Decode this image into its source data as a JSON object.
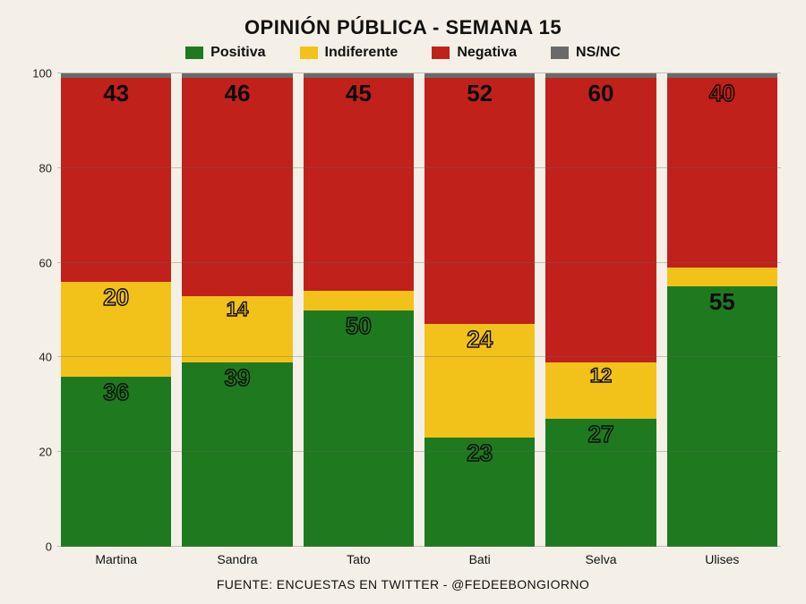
{
  "title": "OPINIÓN PÚBLICA - SEMANA 15",
  "footer": "FUENTE: ENCUESTAS EN TWITTER - @FEDEEBONGIORNO",
  "background_color": "#f4f0e7",
  "grid_color": "#8a8a82",
  "text_color": "#111111",
  "title_fontsize": 22,
  "axis_fontsize": 13,
  "legend": {
    "items": [
      {
        "label": "Positiva",
        "color": "#1f7a1f"
      },
      {
        "label": "Indiferente",
        "color": "#f2c21a"
      },
      {
        "label": "Negativa",
        "color": "#c0211b"
      },
      {
        "label": "NS/NC",
        "color": "#6a6a6a"
      }
    ]
  },
  "y_axis": {
    "min": 0,
    "max": 100,
    "step": 20,
    "ticks": [
      0,
      20,
      40,
      60,
      80,
      100
    ]
  },
  "categories": [
    "Martina",
    "Sandra",
    "Tato",
    "Bati",
    "Selva",
    "Ulises"
  ],
  "series_order": [
    "positiva",
    "indiferente",
    "negativa",
    "nsnc"
  ],
  "colors": {
    "positiva": "#1f7a1f",
    "indiferente": "#f2c21a",
    "negativa": "#c0211b",
    "nsnc": "#6a6a6a"
  },
  "label_style": {
    "positiva": {
      "display_color": "#0b0b0b",
      "outline": true
    },
    "indiferente": {
      "display_color": "#0b0b0b",
      "outline": true
    },
    "negativa": {
      "display_color": "#0b0b0b",
      "outline": false
    },
    "nsnc": {
      "display_color": "#0b0b0b",
      "outline": false,
      "hide": true
    }
  },
  "data": [
    {
      "name": "Martina",
      "positiva": 36,
      "indiferente": 20,
      "negativa": 43,
      "nsnc": 1
    },
    {
      "name": "Sandra",
      "positiva": 39,
      "indiferente": 14,
      "negativa": 46,
      "nsnc": 1
    },
    {
      "name": "Tato",
      "positiva": 50,
      "indiferente": 4,
      "negativa": 45,
      "nsnc": 1,
      "label_overrides": {
        "indiferente": {
          "hide": true
        }
      }
    },
    {
      "name": "Bati",
      "positiva": 23,
      "indiferente": 24,
      "negativa": 52,
      "nsnc": 1
    },
    {
      "name": "Selva",
      "positiva": 27,
      "indiferente": 12,
      "negativa": 60,
      "nsnc": 1
    },
    {
      "name": "Ulises",
      "positiva": 55,
      "indiferente": 4,
      "negativa": 40,
      "nsnc": 1,
      "label_overrides": {
        "indiferente": {
          "hide": true
        },
        "positiva": {
          "outline": false
        },
        "negativa": {
          "outline": true
        }
      }
    }
  ]
}
